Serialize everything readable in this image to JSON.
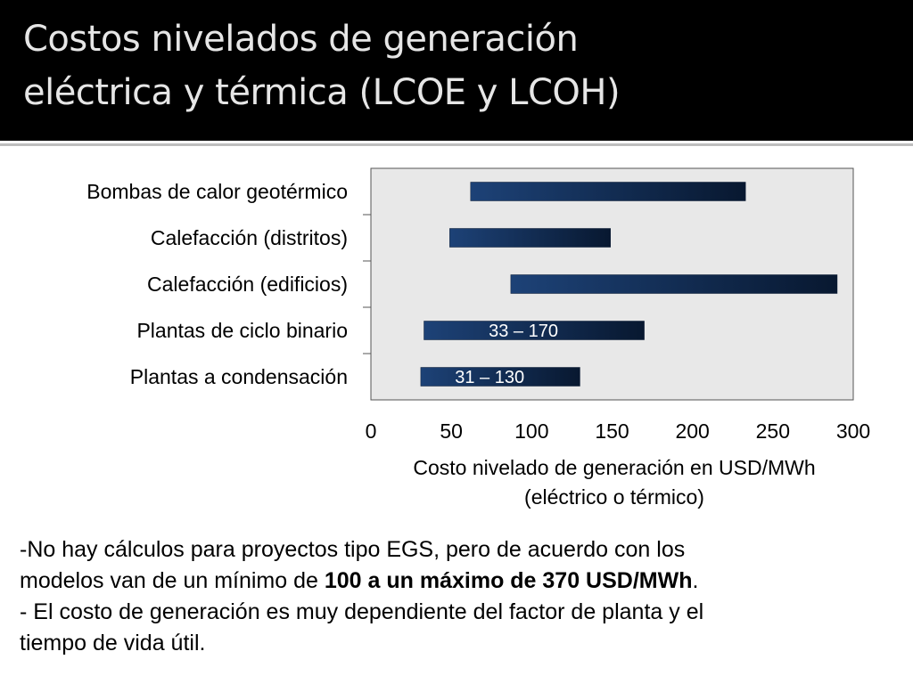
{
  "slide": {
    "title_line1": "Costos nivelados de generación",
    "title_line2": "eléctrica y térmica (LCOE y LCOH)"
  },
  "chart_data": {
    "type": "bar",
    "orientation": "horizontal-range",
    "categories": [
      "Bombas de calor geotérmico",
      "Calefacción (distritos)",
      "Calefacción (edificios)",
      "Plantas de ciclo binario",
      "Plantas a condensación"
    ],
    "ranges": [
      {
        "min": 62,
        "max": 233,
        "label": ""
      },
      {
        "min": 49,
        "max": 149,
        "label": ""
      },
      {
        "min": 87,
        "max": 290,
        "label": ""
      },
      {
        "min": 33,
        "max": 170,
        "label": "33 – 170"
      },
      {
        "min": 31,
        "max": 130,
        "label": "31 – 130"
      }
    ],
    "xlabel_line1": "Costo nivelado de generación en USD/MWh",
    "xlabel_line2": "(eléctrico o térmico)",
    "xlim": [
      0,
      300
    ],
    "xticks": [
      0,
      50,
      100,
      150,
      200,
      250,
      300
    ],
    "grid": false,
    "legend": "none",
    "colors": {
      "bar_start": "#1d4277",
      "bar_end": "#081830",
      "plot_background": "#e8e8e8",
      "axis": "#555555"
    }
  },
  "notes": {
    "line1": "-No hay cálculos para proyectos tipo EGS, pero de acuerdo con los",
    "line2_before": "modelos van de un mínimo de ",
    "line2_bold": "100 a un máximo de 370 USD/MWh",
    "line2_after": ".",
    "line3": "- El costo de generación es muy dependiente del factor de planta y el",
    "line4": "tiempo de vida útil."
  }
}
